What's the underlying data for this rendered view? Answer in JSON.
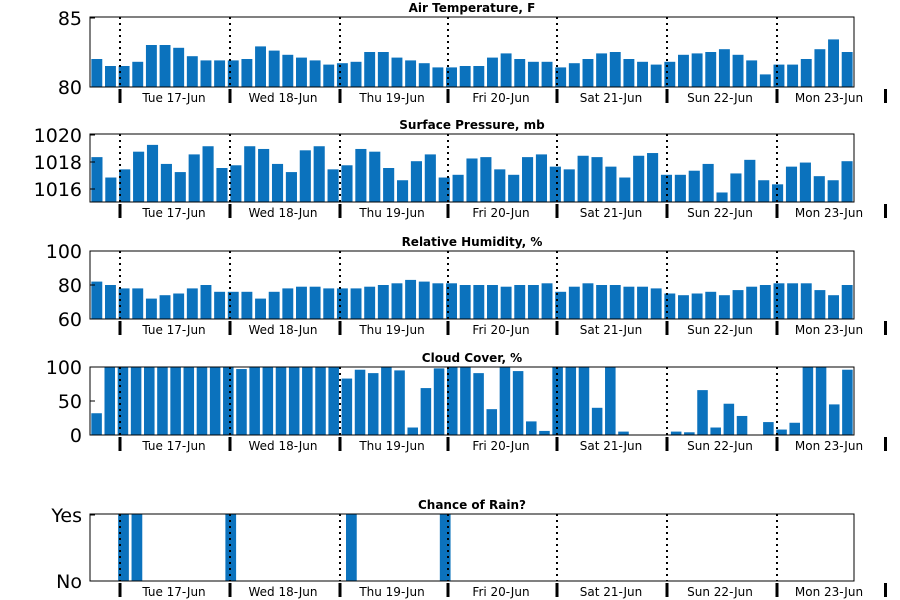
{
  "colors": {
    "bar": "#0b72bd",
    "axis": "#000000",
    "background": "#ffffff"
  },
  "days": [
    "Tue 17-Jun",
    "Wed 18-Jun",
    "Thu 19-Jun",
    "Fri 20-Jun",
    "Sat 21-Jun",
    "Sun 22-Jun",
    "Mon 23-Jun"
  ],
  "chart_data": [
    {
      "type": "bar",
      "title": "Air Temperature, F",
      "ylim": [
        80,
        85
      ],
      "yticks": [
        "80",
        "85"
      ],
      "values": [
        82.0,
        81.5,
        81.5,
        81.8,
        83.0,
        83.0,
        82.8,
        82.2,
        81.9,
        81.9,
        81.9,
        82.0,
        82.9,
        82.6,
        82.3,
        82.1,
        81.9,
        81.6,
        81.7,
        81.8,
        82.5,
        82.5,
        82.1,
        81.9,
        81.7,
        81.4,
        81.4,
        81.5,
        81.5,
        82.1,
        82.4,
        82.0,
        81.8,
        81.8,
        81.4,
        81.7,
        82.0,
        82.4,
        82.5,
        82.0,
        81.8,
        81.6,
        81.8,
        82.3,
        82.4,
        82.5,
        82.7,
        82.3,
        81.9,
        80.9,
        81.6,
        81.6,
        82.0,
        82.7,
        83.4,
        82.5
      ]
    },
    {
      "type": "bar",
      "title": "Surface Pressure, mb",
      "ylim": [
        1015,
        1020
      ],
      "yticks": [
        "1016",
        "1018",
        "1020"
      ],
      "values": [
        1018.3,
        1016.8,
        1017.4,
        1018.7,
        1019.2,
        1017.8,
        1017.2,
        1018.5,
        1019.1,
        1017.5,
        1017.7,
        1019.1,
        1018.9,
        1017.8,
        1017.2,
        1018.8,
        1019.1,
        1017.4,
        1017.7,
        1018.9,
        1018.7,
        1017.5,
        1016.6,
        1018.0,
        1018.5,
        1016.8,
        1017.0,
        1018.2,
        1018.3,
        1017.4,
        1017.0,
        1018.3,
        1018.5,
        1017.6,
        1017.4,
        1018.4,
        1018.3,
        1017.6,
        1016.8,
        1018.4,
        1018.6,
        1017.0,
        1017.0,
        1017.3,
        1017.8,
        1015.7,
        1017.1,
        1018.1,
        1016.6,
        1016.3,
        1017.6,
        1017.9,
        1016.9,
        1016.6,
        1018.0
      ]
    },
    {
      "type": "bar",
      "title": "Relative Humidity, %",
      "ylim": [
        60,
        100
      ],
      "yticks": [
        "60",
        "80",
        "100"
      ],
      "values": [
        82,
        80,
        78,
        78,
        72,
        74,
        75,
        78,
        80,
        76,
        76,
        76,
        72,
        76,
        78,
        79,
        79,
        78,
        78,
        78,
        79,
        80,
        81,
        83,
        82,
        81,
        81,
        80,
        80,
        80,
        79,
        80,
        80,
        81,
        76,
        79,
        81,
        80,
        80,
        79,
        79,
        78,
        75,
        74,
        75,
        76,
        74,
        77,
        79,
        80,
        81,
        81,
        81,
        77,
        74,
        80
      ]
    },
    {
      "type": "bar",
      "title": "Cloud Cover, %",
      "ylim": [
        0,
        100
      ],
      "yticks": [
        "0",
        "50",
        "100"
      ],
      "values": [
        32,
        100,
        100,
        100,
        100,
        100,
        100,
        100,
        100,
        100,
        100,
        97,
        100,
        100,
        100,
        100,
        100,
        100,
        100,
        83,
        96,
        91,
        100,
        95,
        11,
        69,
        98,
        100,
        100,
        91,
        38,
        100,
        94,
        20,
        6,
        100,
        100,
        100,
        40,
        100,
        5,
        0,
        0,
        0,
        5,
        4,
        66,
        11,
        46,
        28,
        0,
        19,
        8,
        18,
        100,
        100,
        45,
        96
      ]
    },
    {
      "type": "bar",
      "title": "Chance of Rain?",
      "ylim": [
        0,
        1
      ],
      "yticks": [
        "No",
        "Yes"
      ],
      "values": [
        0,
        0,
        1,
        1,
        0,
        0,
        0,
        0,
        0,
        0,
        1,
        0,
        0,
        0,
        0,
        0,
        0,
        0,
        0,
        1,
        0,
        0,
        0,
        0,
        0,
        0,
        1,
        0,
        0,
        0,
        0,
        0,
        0,
        0,
        0,
        0,
        0,
        0,
        0,
        0,
        0,
        0,
        0,
        0,
        0,
        0,
        0,
        0,
        0,
        0,
        0,
        0,
        0,
        0,
        0,
        0,
        0
      ]
    }
  ]
}
